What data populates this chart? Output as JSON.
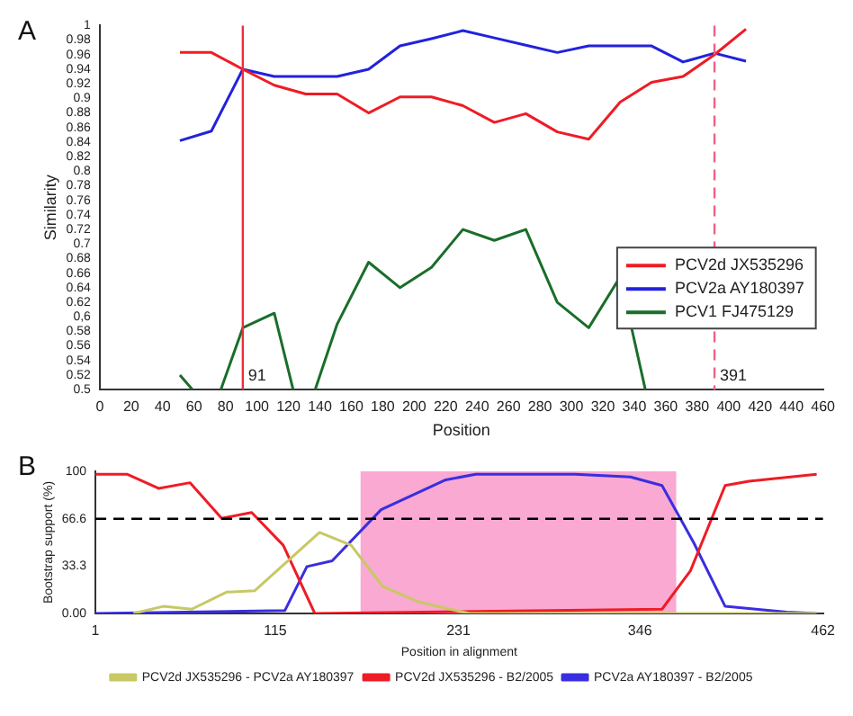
{
  "chart_data": [
    {
      "type": "line",
      "xlabel": "Position",
      "ylabel": "Similarity",
      "annotations": [
        "A"
      ],
      "xlim": [
        0,
        460
      ],
      "xticks": [
        0,
        20,
        40,
        60,
        80,
        100,
        120,
        140,
        160,
        180,
        200,
        220,
        240,
        260,
        280,
        300,
        320,
        340,
        360,
        380,
        400,
        420,
        440,
        460
      ],
      "ylim": [
        0.5,
        1
      ],
      "yticks": [
        0.5,
        0.52,
        0.54,
        0.56,
        0.58,
        {
          "value": 0.6,
          "label": "0,6"
        },
        0.62,
        0.64,
        0.66,
        0.68,
        0.7,
        0.72,
        0.74,
        0.76,
        0.78,
        0.8,
        0.82,
        0.84,
        0.86,
        0.88,
        0.9,
        0.92,
        0.94,
        0.96,
        0.98,
        1
      ],
      "x": [
        51,
        71,
        91,
        111,
        131,
        151,
        171,
        191,
        211,
        231,
        251,
        271,
        291,
        311,
        331,
        351,
        371,
        391,
        411
      ],
      "series": [
        {
          "name": "PCV2d JX535296",
          "color": "#ee1c25",
          "values": [
            0.963,
            0.963,
            0.94,
            0.918,
            0.906,
            0.906,
            0.88,
            0.902,
            0.902,
            0.89,
            0.867,
            0.879,
            0.854,
            0.844,
            0.895,
            0.922,
            0.93,
            0.96,
            0.995
          ]
        },
        {
          "name": "PCV2a AY180397",
          "color": "#2222dd",
          "values": [
            0.842,
            0.855,
            0.94,
            0.93,
            0.93,
            0.93,
            0.94,
            0.972,
            0.982,
            0.993,
            0.983,
            0.973,
            0.963,
            0.972,
            0.972,
            0.972,
            0.95,
            0.962,
            0.951
          ]
        },
        {
          "name": "PCV1 FJ475129",
          "color": "#1a6e2a",
          "x": [
            51,
            59,
            68,
            77,
            91,
            111,
            123,
            130,
            137,
            151,
            171,
            191,
            211,
            231,
            251,
            271,
            291,
            311,
            331,
            347
          ],
          "values": [
            0.52,
            0.5,
            null,
            0.5,
            0.585,
            0.605,
            0.5,
            null,
            0.5,
            0.59,
            0.675,
            0.64,
            0.668,
            0.72,
            0.705,
            0.72,
            0.62,
            0.585,
            0.655,
            0.5
          ]
        }
      ],
      "ref_lines": [
        {
          "axis": "x",
          "value": 91,
          "label": "91",
          "color": "#e8303a",
          "line_style": "solid"
        },
        {
          "axis": "x",
          "value": 391,
          "label": "391",
          "color": "#f06080",
          "line_style": "dashed"
        }
      ],
      "legend": "bottom right",
      "grid": false
    },
    {
      "type": "line",
      "xlabel": "Position in alignment",
      "ylabel": "Bootstrap support (%)",
      "annotations": [
        "B"
      ],
      "xlim": [
        1,
        462
      ],
      "xticks": [
        1,
        115,
        231,
        346,
        462
      ],
      "ylim": [
        0,
        100
      ],
      "yticks": [
        {
          "value": 0,
          "label": "0.00"
        },
        33.3,
        66.6,
        100
      ],
      "series": [
        {
          "name": "PCV2d JX535296 - PCV2a AY180397",
          "color": "#c8c864",
          "x": [
            25,
            44,
            62,
            84,
            102,
            143,
            163,
            183,
            206,
            238,
            458
          ],
          "values": [
            0,
            5,
            3,
            15,
            16,
            57,
            48,
            19,
            8,
            0,
            0
          ]
        },
        {
          "name": "PCV2d JX535296 - B2/2005",
          "color": "#ee1c25",
          "x": [
            1,
            21,
            41,
            61,
            81,
            100,
            120,
            140,
            360,
            378,
            400,
            415,
            458
          ],
          "values": [
            98,
            98,
            88,
            92,
            67,
            71,
            48,
            0,
            3,
            30,
            90,
            93,
            98
          ]
        },
        {
          "name": "PCV2a AY180397 - B2/2005",
          "color": "#3a2ee0",
          "x": [
            1,
            121,
            135,
            151,
            182,
            223,
            242,
            305,
            340,
            360,
            372,
            380,
            400,
            439,
            458
          ],
          "values": [
            0,
            2,
            33,
            37,
            73,
            94,
            98,
            98,
            96,
            90,
            66,
            50,
            5,
            1,
            0
          ]
        }
      ],
      "bands": [
        {
          "axis": "x",
          "from": 169,
          "to": 369,
          "color": "#f9a9d2"
        }
      ],
      "ref_lines": [
        {
          "axis": "y",
          "value": 66.6,
          "color": "#000000",
          "line_style": "dashed"
        }
      ],
      "legend": "bottom",
      "grid": false
    }
  ]
}
